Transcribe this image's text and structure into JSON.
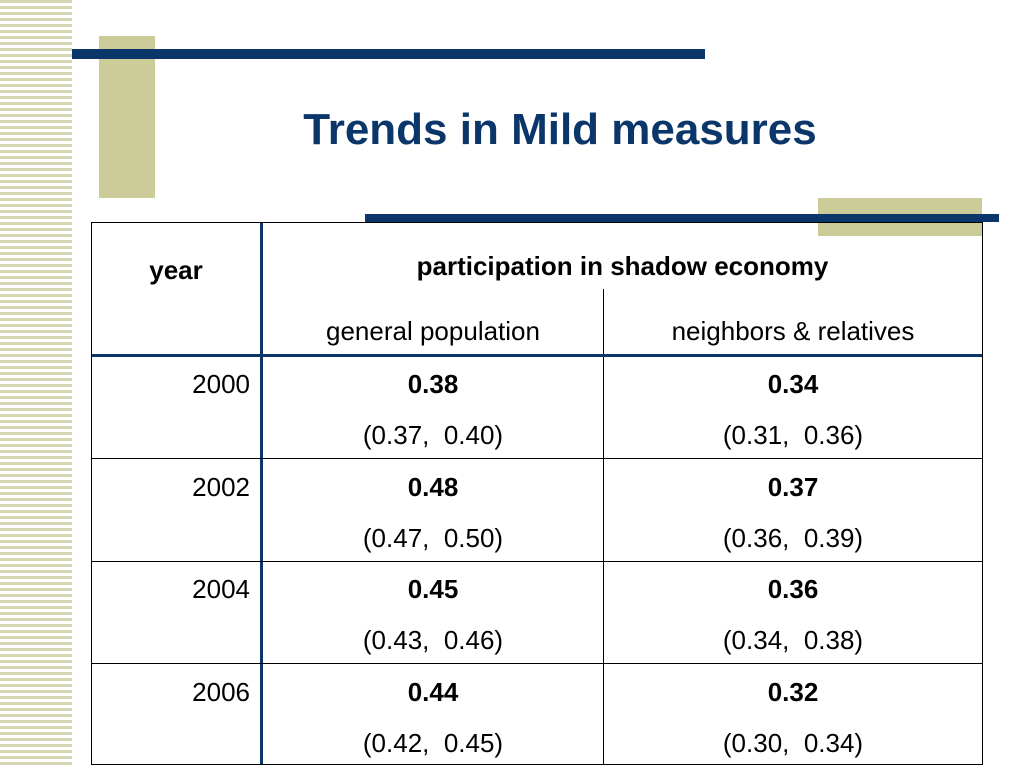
{
  "slide": {
    "title": "Trends in Mild measures"
  },
  "table": {
    "year_header": "year",
    "group_header": "participation in shadow economy",
    "columns": [
      "general population",
      "neighbors & relatives"
    ],
    "rows": [
      {
        "year": "2000",
        "general": {
          "value": "0.38",
          "ci": "(0.37,  0.40)"
        },
        "neighbors": {
          "value": "0.34",
          "ci": "(0.31,  0.36)"
        }
      },
      {
        "year": "2002",
        "general": {
          "value": "0.48",
          "ci": "(0.47,  0.50)"
        },
        "neighbors": {
          "value": "0.37",
          "ci": "(0.36,  0.39)"
        }
      },
      {
        "year": "2004",
        "general": {
          "value": "0.45",
          "ci": "(0.43,  0.46)"
        },
        "neighbors": {
          "value": "0.36",
          "ci": "(0.34,  0.38)"
        }
      },
      {
        "year": "2006",
        "general": {
          "value": "0.44",
          "ci": "(0.42,  0.45)"
        },
        "neighbors": {
          "value": "0.32",
          "ci": "(0.30,  0.34)"
        }
      }
    ]
  },
  "colors": {
    "title": "#0b3669",
    "accent_line": "#0b3669",
    "accent_block": "#cccc99"
  }
}
